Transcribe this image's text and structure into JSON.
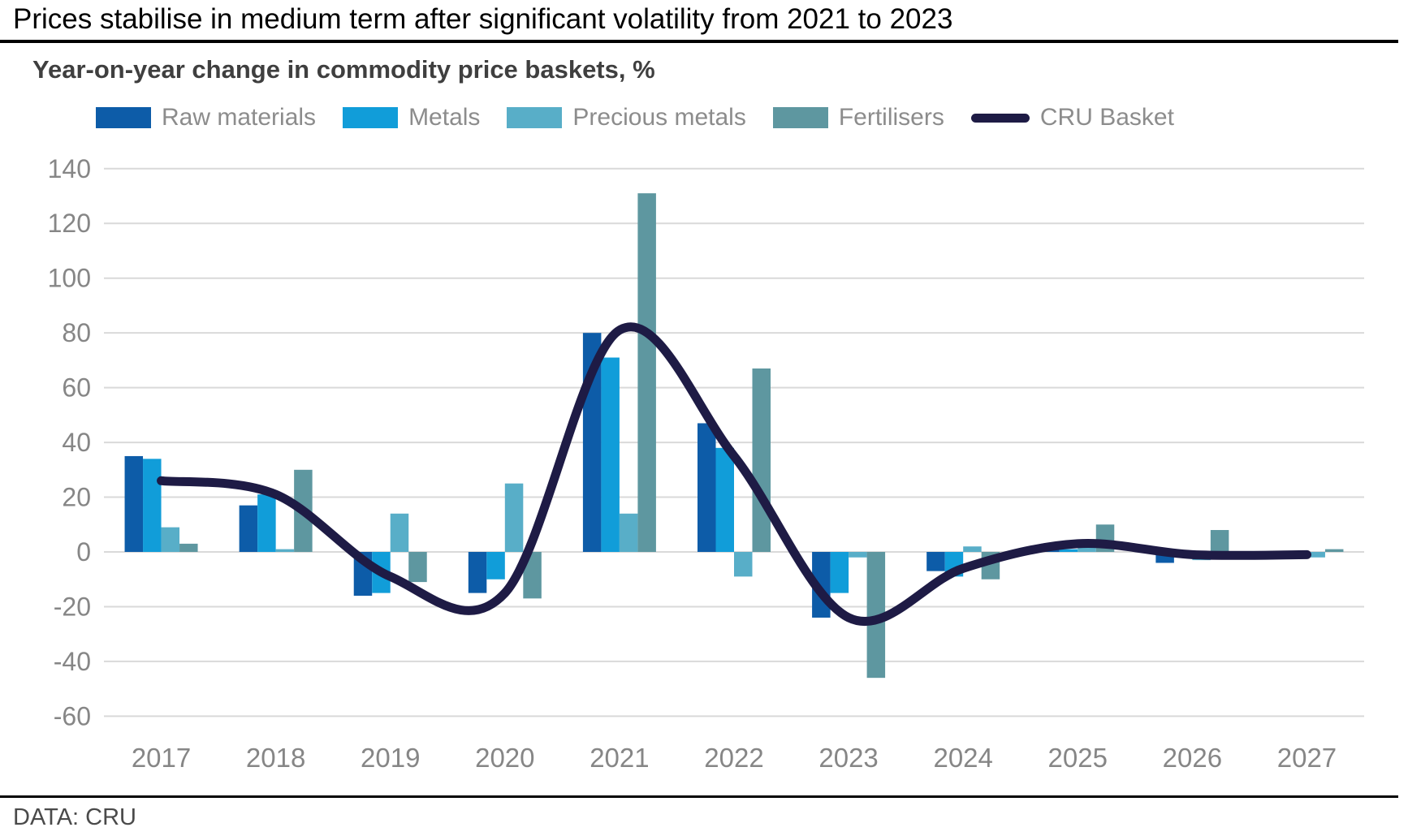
{
  "header": {
    "title": "Prices stabilise in medium term after significant volatility from 2021 to 2023",
    "subtitle": "Year-on-year change in commodity price baskets, %"
  },
  "footer": {
    "source": "DATA: CRU"
  },
  "chart_data": {
    "type": "bar",
    "subtype": "grouped-bars-with-smoothed-line",
    "title": "Year-on-year change in commodity price baskets, %",
    "xlabel": "",
    "ylabel": "",
    "categories": [
      "2017",
      "2018",
      "2019",
      "2020",
      "2021",
      "2022",
      "2023",
      "2024",
      "2025",
      "2026",
      "2027"
    ],
    "series": [
      {
        "name": "Raw materials",
        "type": "bar",
        "color": "#0d5ca8",
        "values": [
          35,
          17,
          -16,
          -15,
          80,
          47,
          -24,
          -7,
          3,
          -4,
          -2
        ]
      },
      {
        "name": "Metals",
        "type": "bar",
        "color": "#119dd9",
        "values": [
          34,
          21,
          -15,
          -10,
          71,
          38,
          -15,
          -9,
          1,
          -1,
          -1
        ]
      },
      {
        "name": "Precious metals",
        "type": "bar",
        "color": "#58aec8",
        "values": [
          9,
          1,
          14,
          25,
          14,
          -9,
          -2,
          2,
          2,
          -3,
          -2
        ]
      },
      {
        "name": "Fertilisers",
        "type": "bar",
        "color": "#5e97a0",
        "values": [
          3,
          30,
          -11,
          -17,
          131,
          67,
          -46,
          -10,
          10,
          8,
          1
        ]
      },
      {
        "name": "CRU Basket",
        "type": "line",
        "color": "#1e1b45",
        "values": [
          26,
          21,
          -9,
          -15,
          81,
          35,
          -24,
          -6,
          3,
          -1,
          -1
        ]
      }
    ],
    "ylim": [
      -60,
      140
    ],
    "ytick_step": 20,
    "yticks": [
      140,
      120,
      100,
      80,
      60,
      40,
      20,
      0,
      -20,
      -40,
      -60
    ],
    "grid": true,
    "gridline_color": "#d9d9d9",
    "axis_label_color": "#868686",
    "legend_position": "top"
  }
}
